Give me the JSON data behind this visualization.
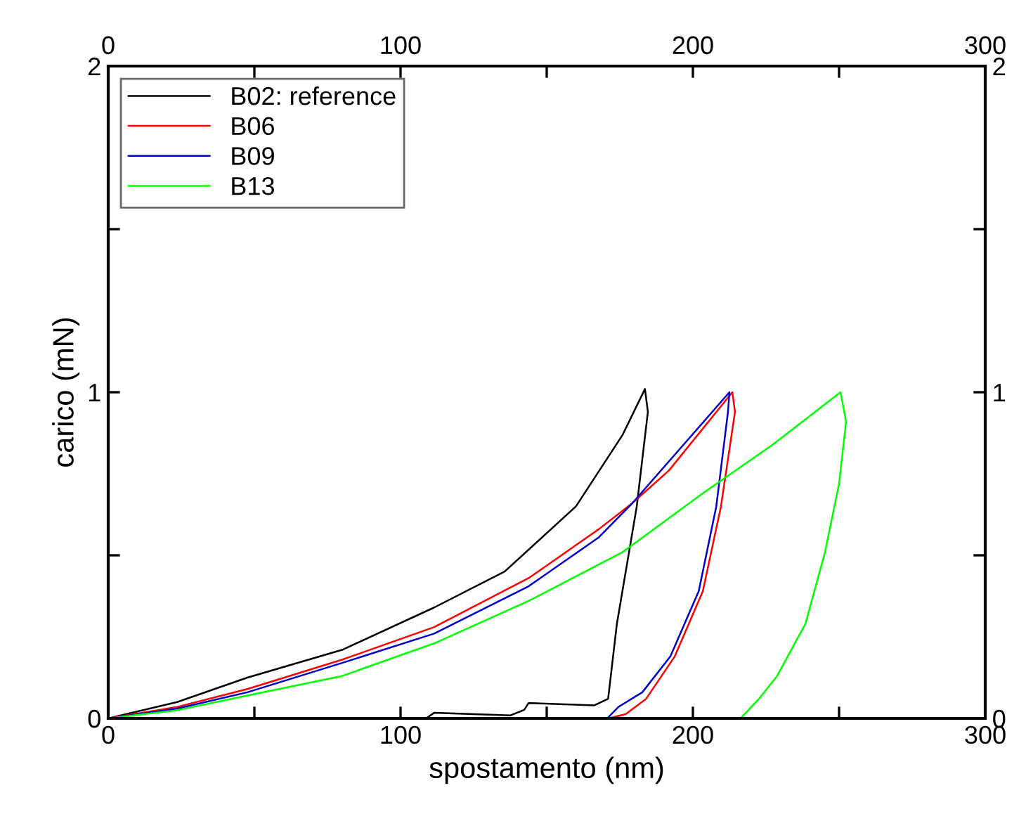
{
  "chart_data": {
    "type": "line",
    "xlabel": "spostamento (nm)",
    "ylabel": "carico (mN)",
    "xlim": [
      0,
      300
    ],
    "ylim": [
      0,
      2
    ],
    "xticks": [
      0,
      {
        "value": 50,
        "label": null
      },
      100,
      {
        "value": 150,
        "label": null
      },
      200,
      {
        "value": 250,
        "label": null
      },
      300
    ],
    "yticks": [
      0,
      {
        "value": 0.5,
        "label": null
      },
      1,
      {
        "value": 1.5,
        "label": null
      },
      2
    ],
    "x2lim": [
      0,
      300
    ],
    "x2ticks": [
      0,
      {
        "value": 50,
        "label": null
      },
      100,
      {
        "value": 150,
        "label": null
      },
      200,
      {
        "value": 250,
        "label": null
      },
      300
    ],
    "y2lim": [
      0,
      2
    ],
    "y2ticks": [
      0,
      {
        "value": 0.5,
        "label": null
      },
      1,
      {
        "value": 1.5,
        "label": null
      },
      2
    ],
    "grid": false,
    "legend": "top left",
    "marker": "none",
    "line_style": "solid",
    "series": [
      {
        "name": "B02: reference",
        "color": "#000000",
        "x": [
          0,
          23.6,
          47.6,
          80,
          111.5,
          135.6,
          160,
          176,
          183.6,
          184.6,
          180.8,
          174,
          171,
          166.3,
          143.8,
          142.3,
          137.5,
          111.5,
          108.7
        ],
        "values": [
          0,
          0.05,
          0.125,
          0.21,
          0.34,
          0.45,
          0.65,
          0.87,
          1.01,
          0.94,
          0.65,
          0.29,
          0.06,
          0.04,
          0.047,
          0.026,
          0.009,
          0.017,
          0
        ]
      },
      {
        "name": "B06",
        "color": "#ff0000",
        "x": [
          0,
          23.6,
          47.6,
          80,
          111.5,
          143.8,
          167.8,
          179.3,
          191.8,
          213.5,
          214.4,
          209.6,
          203.4,
          193.8,
          184,
          177,
          171
        ],
        "values": [
          0,
          0.035,
          0.09,
          0.18,
          0.28,
          0.43,
          0.58,
          0.66,
          0.76,
          1.0,
          0.94,
          0.65,
          0.39,
          0.19,
          0.06,
          0.013,
          0
        ]
      },
      {
        "name": "B09",
        "color": "#0000cc",
        "x": [
          0,
          23.6,
          47.6,
          80,
          111.5,
          143.8,
          167.8,
          179.3,
          212.5,
          212,
          208,
          202,
          192.3,
          182.7,
          174.5,
          170.7
        ],
        "values": [
          0,
          0.03,
          0.08,
          0.17,
          0.26,
          0.405,
          0.555,
          0.66,
          1.0,
          0.94,
          0.65,
          0.39,
          0.19,
          0.08,
          0.035,
          0
        ]
      },
      {
        "name": "B13",
        "color": "#00ff00",
        "x": [
          0,
          23.6,
          47.6,
          80,
          111.5,
          143.8,
          176,
          203.4,
          227.4,
          250.5,
          252.4,
          250,
          245.2,
          238.5,
          228.8,
          222.6,
          216.3
        ],
        "values": [
          0,
          0.025,
          0.07,
          0.13,
          0.23,
          0.36,
          0.51,
          0.69,
          0.84,
          1.0,
          0.91,
          0.72,
          0.51,
          0.29,
          0.13,
          0.06,
          0
        ]
      }
    ]
  }
}
